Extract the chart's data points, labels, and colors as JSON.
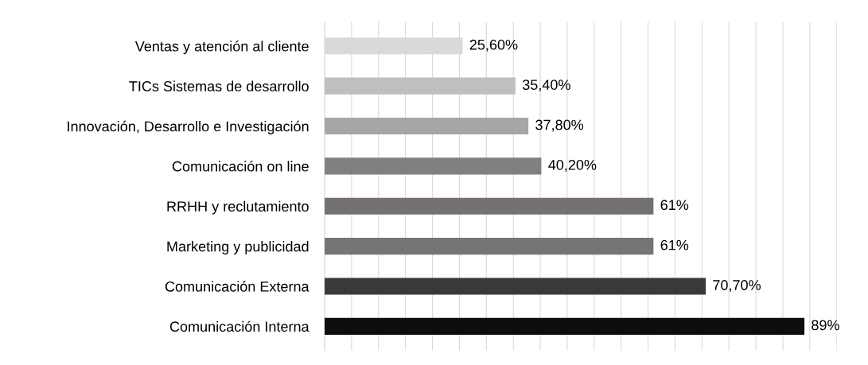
{
  "chart_data": {
    "type": "bar",
    "orientation": "horizontal",
    "categories": [
      "Ventas y atención al cliente",
      "TICs Sistemas de desarrollo",
      "Innovación, Desarrollo e Investigación",
      "Comunicación on line",
      "RRHH y reclutamiento",
      "Marketing y publicidad",
      "Comunicación Externa",
      "Comunicación Interna"
    ],
    "values": [
      25.6,
      35.4,
      37.8,
      40.2,
      61,
      61,
      70.7,
      89
    ],
    "value_labels": [
      "25,60%",
      "35,40%",
      "37,80%",
      "40,20%",
      "61%",
      "61%",
      "70,70%",
      "89%"
    ],
    "colors": [
      "#d9d9d9",
      "#bfbfbf",
      "#a6a6a6",
      "#808080",
      "#767171",
      "#757575",
      "#3b3838",
      "#0d0d0d"
    ],
    "xlim": [
      0,
      95
    ],
    "xticks": [
      {
        "value": 0,
        "label": null
      },
      {
        "value": 5,
        "label": null
      },
      {
        "value": 10,
        "label": null
      },
      {
        "value": 15,
        "label": null
      },
      {
        "value": 20,
        "label": null
      },
      {
        "value": 25,
        "label": null
      },
      {
        "value": 30,
        "label": null
      },
      {
        "value": 35,
        "label": null
      },
      {
        "value": 40,
        "label": null
      },
      {
        "value": 45,
        "label": null
      },
      {
        "value": 50,
        "label": null
      },
      {
        "value": 55,
        "label": null
      },
      {
        "value": 60,
        "label": null
      },
      {
        "value": 65,
        "label": null
      },
      {
        "value": 70,
        "label": null
      },
      {
        "value": 75,
        "label": null
      },
      {
        "value": 80,
        "label": null
      },
      {
        "value": 85,
        "label": null
      },
      {
        "value": 90,
        "label": null
      },
      {
        "value": 95,
        "label": null
      }
    ],
    "grid": "x",
    "tick_labels": "y",
    "legend": false
  }
}
